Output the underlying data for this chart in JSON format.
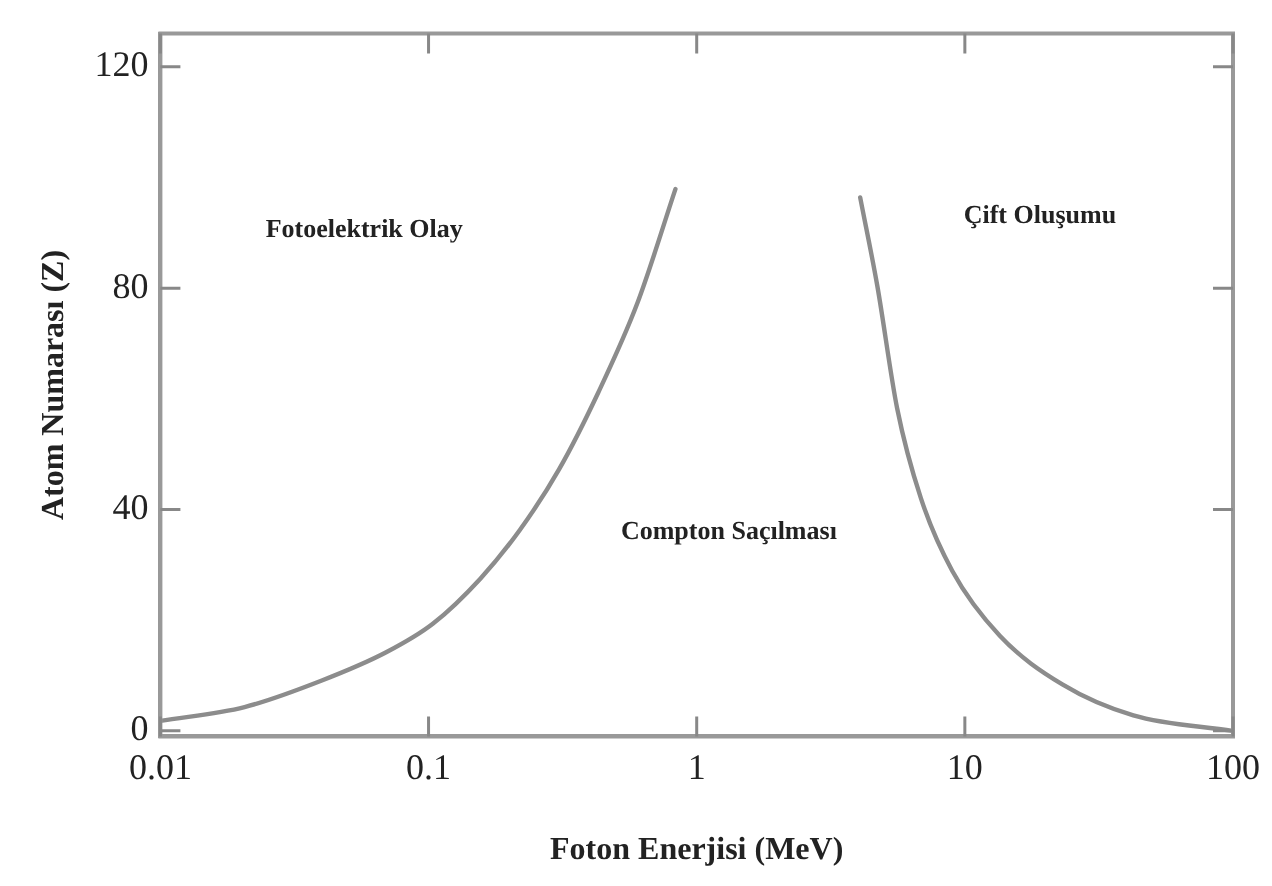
{
  "chart_data": {
    "type": "line",
    "xlabel": "Foton Enerjisi (MeV)",
    "ylabel": "Atom Numarası (Z)",
    "log": "x",
    "xlim": [
      0.01,
      100
    ],
    "xticks": [
      0.01,
      0.1,
      1,
      10,
      100
    ],
    "ylim": [
      -1,
      126
    ],
    "yticks": [
      0,
      40,
      80,
      120
    ],
    "grid": false,
    "legend": false,
    "marker": "none",
    "line_style": "solid",
    "series": [
      {
        "color": "#8c8c8c",
        "x": [
          0.01,
          0.0206,
          0.04,
          0.0695,
          0.104,
          0.156,
          0.219,
          0.307,
          0.43,
          0.602,
          0.833
        ],
        "values": [
          1.8,
          4.3,
          9.1,
          14.2,
          19.4,
          27.5,
          36.3,
          47.3,
          61.2,
          77.4,
          97.9
        ]
      },
      {
        "color": "#8c8c8c",
        "x": [
          4.07,
          4.72,
          5.59,
          6.85,
          8.98,
          13.5,
          23.1,
          42.5,
          100
        ],
        "values": [
          96.4,
          80.3,
          58.3,
          42.1,
          28.9,
          17.2,
          8.4,
          2.8,
          0
        ]
      }
    ],
    "annotations": [
      "Fotoelektrik Olay",
      "Compton Saçılması",
      "Çift Oluşumu"
    ]
  }
}
